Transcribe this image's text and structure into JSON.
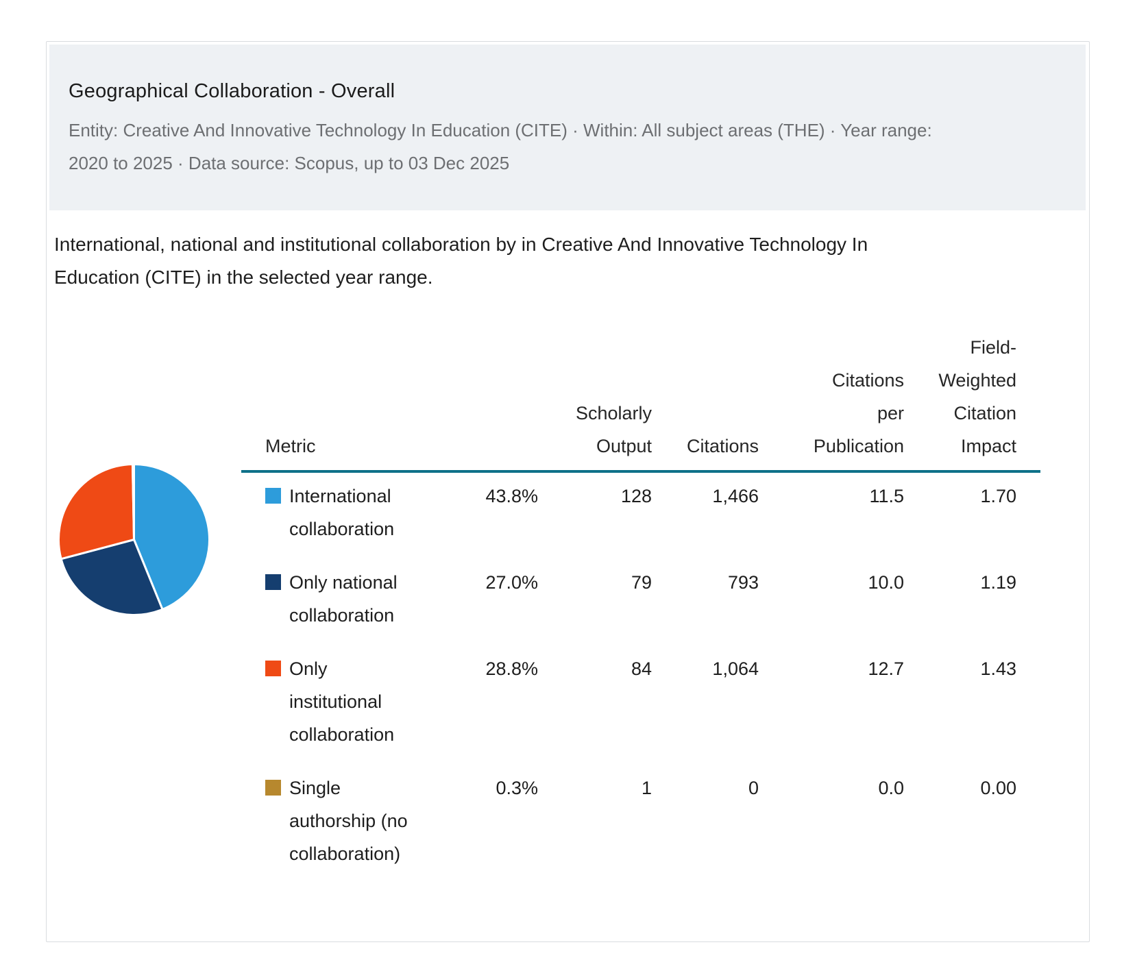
{
  "header": {
    "title": "Geographical Collaboration - Overall",
    "subtitle": "Entity: Creative And Innovative Technology In Education (CITE)  ·  Within: All subject areas (THE)  ·  Year range:\n2020 to 2025  ·  Data source: Scopus, up to 03 Dec 2025"
  },
  "description": "International, national and institutional collaboration by in Creative And Innovative Technology In\nEducation (CITE) in the selected year range.",
  "table": {
    "columns": [
      "Metric",
      "",
      "Scholarly\nOutput",
      "Citations",
      "Citations\nper\nPublication",
      "Field-\nWeighted\nCitation\nImpact"
    ],
    "rows": [
      {
        "color": "#2d9cdb",
        "label": "International collaboration",
        "pct": "43.8%",
        "output": "128",
        "citations": "1,466",
        "cpp": "11.5",
        "fwci": "1.70"
      },
      {
        "color": "#153e6f",
        "label": "Only national collaboration",
        "pct": "27.0%",
        "output": "79",
        "citations": "793",
        "cpp": "10.0",
        "fwci": "1.19"
      },
      {
        "color": "#ef4a15",
        "label": "Only institutional collaboration",
        "pct": "28.8%",
        "output": "84",
        "citations": "1,064",
        "cpp": "12.7",
        "fwci": "1.43"
      },
      {
        "color": "#b7882e",
        "label": "Single authorship (no collaboration)",
        "pct": "0.3%",
        "output": "1",
        "citations": "0",
        "cpp": "0.0",
        "fwci": "0.00"
      }
    ]
  },
  "chart_data": {
    "type": "pie",
    "title": "Geographical Collaboration - Overall",
    "categories": [
      "International collaboration",
      "Only national collaboration",
      "Only institutional collaboration",
      "Single authorship (no collaboration)"
    ],
    "values": [
      43.8,
      27.0,
      28.8,
      0.3
    ],
    "unit": "percent of scholarly output",
    "colors": [
      "#2d9cdb",
      "#153e6f",
      "#ef4a15",
      "#b7882e"
    ],
    "legend_position": "table-right",
    "series": [
      {
        "name": "Scholarly Output",
        "values": [
          128,
          79,
          84,
          1
        ]
      },
      {
        "name": "Citations",
        "values": [
          1466,
          793,
          1064,
          0
        ]
      },
      {
        "name": "Citations per Publication",
        "values": [
          11.5,
          10.0,
          12.7,
          0.0
        ]
      },
      {
        "name": "Field-Weighted Citation Impact",
        "values": [
          1.7,
          1.19,
          1.43,
          0.0
        ]
      }
    ]
  }
}
